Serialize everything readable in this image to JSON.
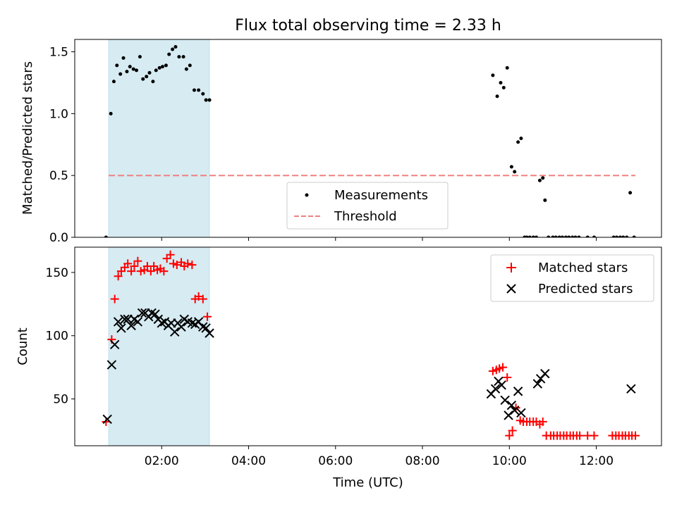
{
  "chart_data": [
    {
      "type": "scatter",
      "title": "Flux total observing time = 2.33 h",
      "xlabel": "",
      "ylabel": "Matched/Predicted stars",
      "xlim": [
        0.0,
        13.5
      ],
      "ylim": [
        0.0,
        1.6
      ],
      "yticks": [
        0.0,
        0.5,
        1.0,
        1.5
      ],
      "ytick_labels": [
        "0.0",
        "0.5",
        "1.0",
        "1.5"
      ],
      "xticks": [
        2,
        4,
        6,
        8,
        10,
        12
      ],
      "shaded_interval": {
        "x": [
          0.78,
          3.1
        ],
        "color": "#add8e6"
      },
      "legend": {
        "position": "lower-center",
        "entries": [
          "Measurements",
          "Threshold"
        ]
      },
      "threshold": {
        "name": "Threshold",
        "value": 0.5,
        "x": [
          0.78,
          12.9
        ],
        "color": "#f08080",
        "style": "dashed"
      },
      "series": [
        {
          "name": "Measurements",
          "color": "#000000",
          "marker": "dot",
          "points": [
            [
              0.72,
              0.0
            ],
            [
              0.83,
              1.0
            ],
            [
              0.9,
              1.26
            ],
            [
              0.97,
              1.39
            ],
            [
              1.05,
              1.32
            ],
            [
              1.12,
              1.45
            ],
            [
              1.2,
              1.34
            ],
            [
              1.27,
              1.38
            ],
            [
              1.35,
              1.36
            ],
            [
              1.42,
              1.35
            ],
            [
              1.5,
              1.46
            ],
            [
              1.57,
              1.28
            ],
            [
              1.65,
              1.3
            ],
            [
              1.72,
              1.33
            ],
            [
              1.8,
              1.26
            ],
            [
              1.87,
              1.35
            ],
            [
              1.95,
              1.37
            ],
            [
              2.02,
              1.38
            ],
            [
              2.1,
              1.39
            ],
            [
              2.17,
              1.48
            ],
            [
              2.25,
              1.52
            ],
            [
              2.32,
              1.54
            ],
            [
              2.4,
              1.46
            ],
            [
              2.5,
              1.46
            ],
            [
              2.57,
              1.36
            ],
            [
              2.65,
              1.39
            ],
            [
              2.75,
              1.19
            ],
            [
              2.85,
              1.19
            ],
            [
              2.95,
              1.16
            ],
            [
              3.02,
              1.11
            ],
            [
              3.1,
              1.11
            ],
            [
              9.62,
              1.31
            ],
            [
              9.72,
              1.14
            ],
            [
              9.8,
              1.25
            ],
            [
              9.87,
              1.21
            ],
            [
              9.95,
              1.37
            ],
            [
              10.05,
              0.57
            ],
            [
              10.12,
              0.53
            ],
            [
              10.2,
              0.77
            ],
            [
              10.27,
              0.8
            ],
            [
              10.35,
              0.0
            ],
            [
              10.4,
              0.0
            ],
            [
              10.47,
              0.0
            ],
            [
              10.55,
              0.0
            ],
            [
              10.62,
              0.0
            ],
            [
              10.7,
              0.46
            ],
            [
              10.77,
              0.48
            ],
            [
              10.82,
              0.3
            ],
            [
              10.9,
              0.0
            ],
            [
              11.0,
              0.0
            ],
            [
              11.07,
              0.0
            ],
            [
              11.15,
              0.0
            ],
            [
              11.22,
              0.0
            ],
            [
              11.3,
              0.0
            ],
            [
              11.37,
              0.0
            ],
            [
              11.45,
              0.0
            ],
            [
              11.52,
              0.0
            ],
            [
              11.6,
              0.0
            ],
            [
              11.8,
              0.0
            ],
            [
              11.95,
              0.0
            ],
            [
              12.4,
              0.0
            ],
            [
              12.47,
              0.0
            ],
            [
              12.55,
              0.0
            ],
            [
              12.62,
              0.0
            ],
            [
              12.7,
              0.0
            ],
            [
              12.78,
              0.36
            ],
            [
              12.87,
              0.0
            ]
          ]
        }
      ]
    },
    {
      "type": "scatter",
      "title": "",
      "xlabel": "Time (UTC)",
      "ylabel": "Count",
      "xlim": [
        0.0,
        13.5
      ],
      "ylim": [
        13,
        170
      ],
      "yticks": [
        50,
        100,
        150
      ],
      "ytick_labels": [
        "50",
        "100",
        "150"
      ],
      "xticks": [
        2,
        4,
        6,
        8,
        10,
        12
      ],
      "xtick_labels": [
        "02:00",
        "04:00",
        "06:00",
        "08:00",
        "10:00",
        "12:00"
      ],
      "shaded_interval": {
        "x": [
          0.78,
          3.1
        ],
        "color": "#add8e6"
      },
      "legend": {
        "position": "top-right",
        "entries": [
          "Matched stars",
          "Predicted stars"
        ]
      },
      "series": [
        {
          "name": "Matched stars",
          "color": "#ff0000",
          "marker": "plus",
          "points": [
            [
              0.72,
              32
            ],
            [
              0.85,
              97
            ],
            [
              0.92,
              129
            ],
            [
              1.0,
              147
            ],
            [
              1.07,
              151
            ],
            [
              1.15,
              154
            ],
            [
              1.22,
              157
            ],
            [
              1.3,
              151
            ],
            [
              1.37,
              155
            ],
            [
              1.45,
              159
            ],
            [
              1.52,
              151
            ],
            [
              1.6,
              152
            ],
            [
              1.67,
              155
            ],
            [
              1.75,
              151
            ],
            [
              1.82,
              155
            ],
            [
              1.9,
              152
            ],
            [
              1.97,
              153
            ],
            [
              2.05,
              151
            ],
            [
              2.12,
              161
            ],
            [
              2.2,
              164
            ],
            [
              2.27,
              157
            ],
            [
              2.35,
              156
            ],
            [
              2.45,
              158
            ],
            [
              2.52,
              155
            ],
            [
              2.6,
              157
            ],
            [
              2.7,
              156
            ],
            [
              2.77,
              129
            ],
            [
              2.85,
              131
            ],
            [
              2.95,
              129
            ],
            [
              3.05,
              115
            ],
            [
              9.62,
              72
            ],
            [
              9.7,
              73
            ],
            [
              9.77,
              74
            ],
            [
              9.85,
              75
            ],
            [
              9.95,
              67
            ],
            [
              10.0,
              21
            ],
            [
              10.07,
              25
            ],
            [
              10.15,
              43
            ],
            [
              10.25,
              33
            ],
            [
              10.32,
              32
            ],
            [
              10.4,
              32
            ],
            [
              10.47,
              32
            ],
            [
              10.55,
              32
            ],
            [
              10.62,
              32
            ],
            [
              10.7,
              30
            ],
            [
              10.77,
              32
            ],
            [
              10.85,
              21
            ],
            [
              10.95,
              21
            ],
            [
              11.02,
              21
            ],
            [
              11.1,
              21
            ],
            [
              11.17,
              21
            ],
            [
              11.25,
              21
            ],
            [
              11.32,
              21
            ],
            [
              11.4,
              21
            ],
            [
              11.47,
              21
            ],
            [
              11.55,
              21
            ],
            [
              11.62,
              21
            ],
            [
              11.8,
              21
            ],
            [
              11.95,
              21
            ],
            [
              12.37,
              21
            ],
            [
              12.45,
              21
            ],
            [
              12.52,
              21
            ],
            [
              12.6,
              21
            ],
            [
              12.67,
              21
            ],
            [
              12.75,
              21
            ],
            [
              12.82,
              21
            ],
            [
              12.9,
              21
            ]
          ]
        },
        {
          "name": "Predicted stars",
          "color": "#000000",
          "marker": "x",
          "points": [
            [
              0.75,
              34
            ],
            [
              0.85,
              77
            ],
            [
              0.92,
              93
            ],
            [
              1.0,
              111
            ],
            [
              1.07,
              106
            ],
            [
              1.15,
              113
            ],
            [
              1.22,
              113
            ],
            [
              1.3,
              108
            ],
            [
              1.37,
              113
            ],
            [
              1.45,
              111
            ],
            [
              1.55,
              118
            ],
            [
              1.62,
              118
            ],
            [
              1.7,
              115
            ],
            [
              1.77,
              118
            ],
            [
              1.85,
              117
            ],
            [
              1.92,
              113
            ],
            [
              2.0,
              110
            ],
            [
              2.07,
              111
            ],
            [
              2.15,
              108
            ],
            [
              2.22,
              110
            ],
            [
              2.3,
              103
            ],
            [
              2.37,
              110
            ],
            [
              2.45,
              107
            ],
            [
              2.52,
              113
            ],
            [
              2.6,
              111
            ],
            [
              2.7,
              110
            ],
            [
              2.77,
              109
            ],
            [
              2.85,
              111
            ],
            [
              2.95,
              107
            ],
            [
              3.02,
              106
            ],
            [
              3.1,
              102
            ],
            [
              9.58,
              54
            ],
            [
              9.68,
              58
            ],
            [
              9.75,
              64
            ],
            [
              9.82,
              61
            ],
            [
              9.9,
              49
            ],
            [
              9.98,
              37
            ],
            [
              10.05,
              45
            ],
            [
              10.12,
              41
            ],
            [
              10.2,
              56
            ],
            [
              10.27,
              39
            ],
            [
              10.65,
              62
            ],
            [
              10.72,
              66
            ],
            [
              10.82,
              70
            ],
            [
              12.8,
              58
            ]
          ]
        }
      ]
    }
  ]
}
